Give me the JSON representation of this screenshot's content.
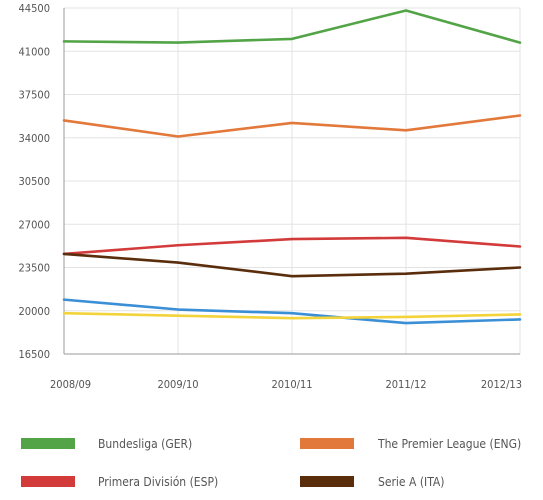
{
  "chart_data": {
    "type": "line",
    "title": "",
    "xlabel": "",
    "ylabel": "",
    "categories": [
      "2008/09",
      "2009/10",
      "2010/11",
      "2011/12",
      "2012/13"
    ],
    "ylim": [
      16500,
      44500
    ],
    "yticks": [
      16500,
      20000,
      23500,
      27000,
      30500,
      34000,
      37500,
      41000,
      44500
    ],
    "grid": "vertical",
    "legend_position": "bottom",
    "series": [
      {
        "name": "Bundesliga (GER)",
        "color": "#52a447",
        "values": [
          41800,
          41700,
          42000,
          44300,
          41700
        ]
      },
      {
        "name": "The Premier League (ENG)",
        "color": "#e2793a",
        "values": [
          35400,
          34100,
          35200,
          34600,
          35800
        ]
      },
      {
        "name": "Primera División (ESP)",
        "color": "#d33a3a",
        "values": [
          24600,
          25300,
          25800,
          25900,
          25200
        ]
      },
      {
        "name": "Serie A (ITA)",
        "color": "#5a2d0c",
        "values": [
          24600,
          23900,
          22800,
          23000,
          23500
        ]
      },
      {
        "name": "",
        "color": "#3a8fd6",
        "values": [
          20900,
          20100,
          19800,
          19000,
          19300
        ]
      },
      {
        "name": "",
        "color": "#f2d43a",
        "values": [
          19800,
          19600,
          19400,
          19500,
          19700
        ]
      }
    ]
  }
}
